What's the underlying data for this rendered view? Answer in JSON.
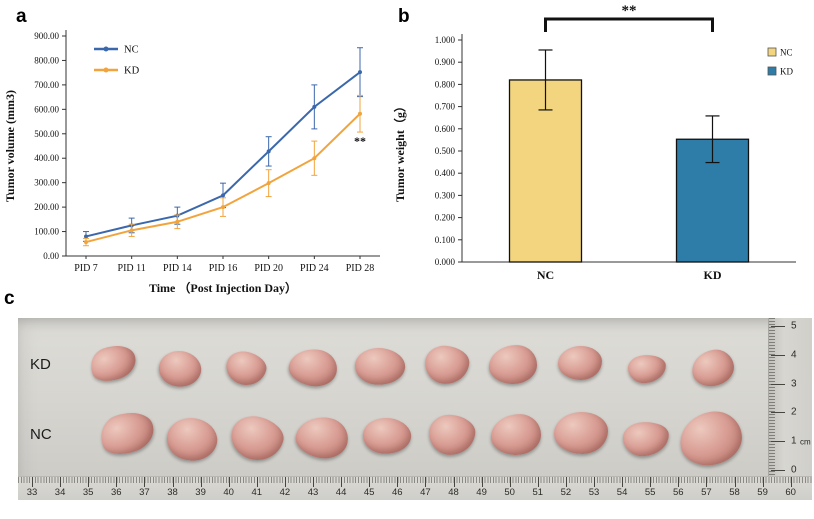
{
  "panels": {
    "a": {
      "letter": "a"
    },
    "b": {
      "letter": "b"
    },
    "c": {
      "letter": "c"
    }
  },
  "chart_data": [
    {
      "id": "tumor-volume",
      "type": "line",
      "title": "",
      "xlabel": "Time （Post Injection Day）",
      "ylabel": "Tumor volume (mm3)",
      "categories": [
        "PID 7",
        "PID 11",
        "PID 14",
        "PID 16",
        "PID 20",
        "PID 24",
        "PID 28"
      ],
      "ylim": [
        0,
        900
      ],
      "ytick_labels": [
        "0.00",
        "100.00",
        "200.00",
        "300.00",
        "400.00",
        "500.00",
        "600.00",
        "700.00",
        "800.00",
        "900.00"
      ],
      "grid": false,
      "legend_position": "top-left-inside",
      "series": [
        {
          "name": "NC",
          "color": "#3b68ac",
          "values": [
            80,
            125,
            165,
            248,
            428,
            610,
            752
          ],
          "errors": [
            20,
            30,
            35,
            50,
            60,
            90,
            100
          ]
        },
        {
          "name": "KD",
          "color": "#f2a43c",
          "values": [
            57,
            105,
            140,
            200,
            298,
            400,
            582
          ],
          "errors": [
            15,
            25,
            28,
            38,
            55,
            70,
            75
          ]
        }
      ],
      "annotation": {
        "text": "**",
        "x_index": 6,
        "y": 455
      }
    },
    {
      "id": "tumor-weight",
      "type": "bar",
      "title": "",
      "xlabel": "",
      "ylabel": "Tumor weight（g）",
      "categories": [
        "NC",
        "KD"
      ],
      "ylim": [
        0,
        1.0
      ],
      "ytick_labels": [
        "0.000",
        "0.100",
        "0.200",
        "0.300",
        "0.400",
        "0.500",
        "0.600",
        "0.700",
        "0.800",
        "0.900",
        "1.000"
      ],
      "grid": false,
      "legend_position": "top-right-inside",
      "values": [
        0.82,
        0.553
      ],
      "errors": [
        0.135,
        0.105
      ],
      "colors": [
        "#f2d57e",
        "#2e7ca8"
      ],
      "legend": [
        {
          "name": "NC",
          "color": "#f2d57e"
        },
        {
          "name": "KD",
          "color": "#2e7ca8"
        }
      ],
      "significance": {
        "text": "**",
        "between": [
          "NC",
          "KD"
        ]
      }
    }
  ],
  "photo": {
    "rows": [
      {
        "label": "KD",
        "count": 10,
        "sizes": [
          46,
          42,
          40,
          48,
          50,
          44,
          48,
          44,
          38,
          42
        ]
      },
      {
        "label": "NC",
        "count": 10,
        "sizes": [
          54,
          50,
          52,
          52,
          48,
          46,
          50,
          54,
          46,
          62
        ]
      }
    ],
    "bottom_ruler": [
      "33",
      "34",
      "35",
      "36",
      "37",
      "38",
      "39",
      "40",
      "41",
      "42",
      "43",
      "44",
      "45",
      "46",
      "47",
      "48",
      "49",
      "50",
      "51",
      "52",
      "53",
      "54",
      "55",
      "56",
      "57",
      "58",
      "59",
      "60"
    ],
    "side_ruler": {
      "values": [
        "5",
        "4",
        "3",
        "2",
        "1",
        "0"
      ],
      "unit": "cm"
    },
    "tumor_palette": {
      "highlight": "#edc9be",
      "mid": "#d99e95",
      "edge": "#b9786f"
    }
  }
}
